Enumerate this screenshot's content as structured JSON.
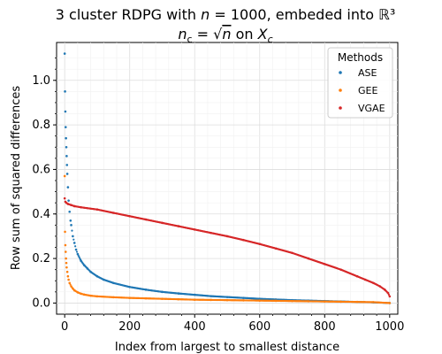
{
  "chart_data": {
    "type": "scatter",
    "title_line1": "3 cluster RDPG with n = 1000, embeded into ℝ³",
    "title_line2": "n_c = √n on X_c",
    "xlabel": "Index from largest to smallest distance",
    "ylabel": "Row sum of squared differences",
    "xlim": [
      -25,
      1025
    ],
    "ylim": [
      -0.05,
      1.17
    ],
    "xticks": [
      0,
      200,
      400,
      600,
      800,
      1000
    ],
    "yticks": [
      0.0,
      0.2,
      0.4,
      0.6,
      0.8,
      1.0
    ],
    "xtick_labels": [
      "0",
      "200",
      "400",
      "600",
      "800",
      "1000"
    ],
    "ytick_labels": [
      "0.0",
      "0.2",
      "0.4",
      "0.6",
      "0.8",
      "1.0"
    ],
    "grid": true,
    "legend_title": "Methods",
    "legend_position": "top-right",
    "series": [
      {
        "name": "ASE",
        "color": "#1f77b4",
        "x": [
          0,
          1,
          2,
          3,
          4,
          5,
          6,
          7,
          8,
          10,
          12,
          15,
          18,
          20,
          25,
          30,
          35,
          40,
          50,
          60,
          70,
          80,
          100,
          120,
          150,
          200,
          250,
          300,
          350,
          400,
          450,
          500,
          550,
          600,
          650,
          700,
          750,
          800,
          850,
          900,
          950,
          1000
        ],
        "y": [
          1.12,
          0.95,
          0.86,
          0.79,
          0.74,
          0.7,
          0.66,
          0.62,
          0.58,
          0.52,
          0.46,
          0.41,
          0.37,
          0.35,
          0.3,
          0.27,
          0.24,
          0.22,
          0.19,
          0.17,
          0.155,
          0.14,
          0.12,
          0.105,
          0.09,
          0.072,
          0.06,
          0.05,
          0.043,
          0.037,
          0.031,
          0.027,
          0.023,
          0.019,
          0.016,
          0.013,
          0.011,
          0.009,
          0.007,
          0.005,
          0.003,
          0.0
        ]
      },
      {
        "name": "GEE",
        "color": "#ff7f0e",
        "x": [
          0,
          1,
          2,
          3,
          4,
          5,
          6,
          8,
          10,
          12,
          15,
          20,
          25,
          30,
          40,
          50,
          60,
          80,
          100,
          150,
          200,
          250,
          300,
          350,
          400,
          450,
          500,
          550,
          600,
          650,
          700,
          750,
          800,
          850,
          900,
          950,
          1000
        ],
        "y": [
          0.57,
          0.32,
          0.26,
          0.23,
          0.2,
          0.18,
          0.16,
          0.14,
          0.12,
          0.105,
          0.09,
          0.075,
          0.065,
          0.057,
          0.048,
          0.042,
          0.038,
          0.033,
          0.03,
          0.026,
          0.023,
          0.021,
          0.019,
          0.017,
          0.015,
          0.014,
          0.013,
          0.012,
          0.011,
          0.01,
          0.009,
          0.008,
          0.007,
          0.006,
          0.005,
          0.004,
          0.0
        ]
      },
      {
        "name": "VGAE",
        "color": "#d62728",
        "x": [
          0,
          2,
          5,
          10,
          20,
          30,
          50,
          100,
          150,
          200,
          250,
          300,
          350,
          400,
          450,
          500,
          550,
          600,
          650,
          700,
          750,
          800,
          850,
          900,
          925,
          950,
          970,
          985,
          995,
          1000
        ],
        "y": [
          0.47,
          0.455,
          0.45,
          0.445,
          0.44,
          0.435,
          0.43,
          0.42,
          0.405,
          0.39,
          0.375,
          0.36,
          0.345,
          0.33,
          0.315,
          0.3,
          0.283,
          0.265,
          0.245,
          0.225,
          0.2,
          0.175,
          0.15,
          0.12,
          0.105,
          0.09,
          0.075,
          0.06,
          0.045,
          0.03
        ]
      }
    ]
  }
}
